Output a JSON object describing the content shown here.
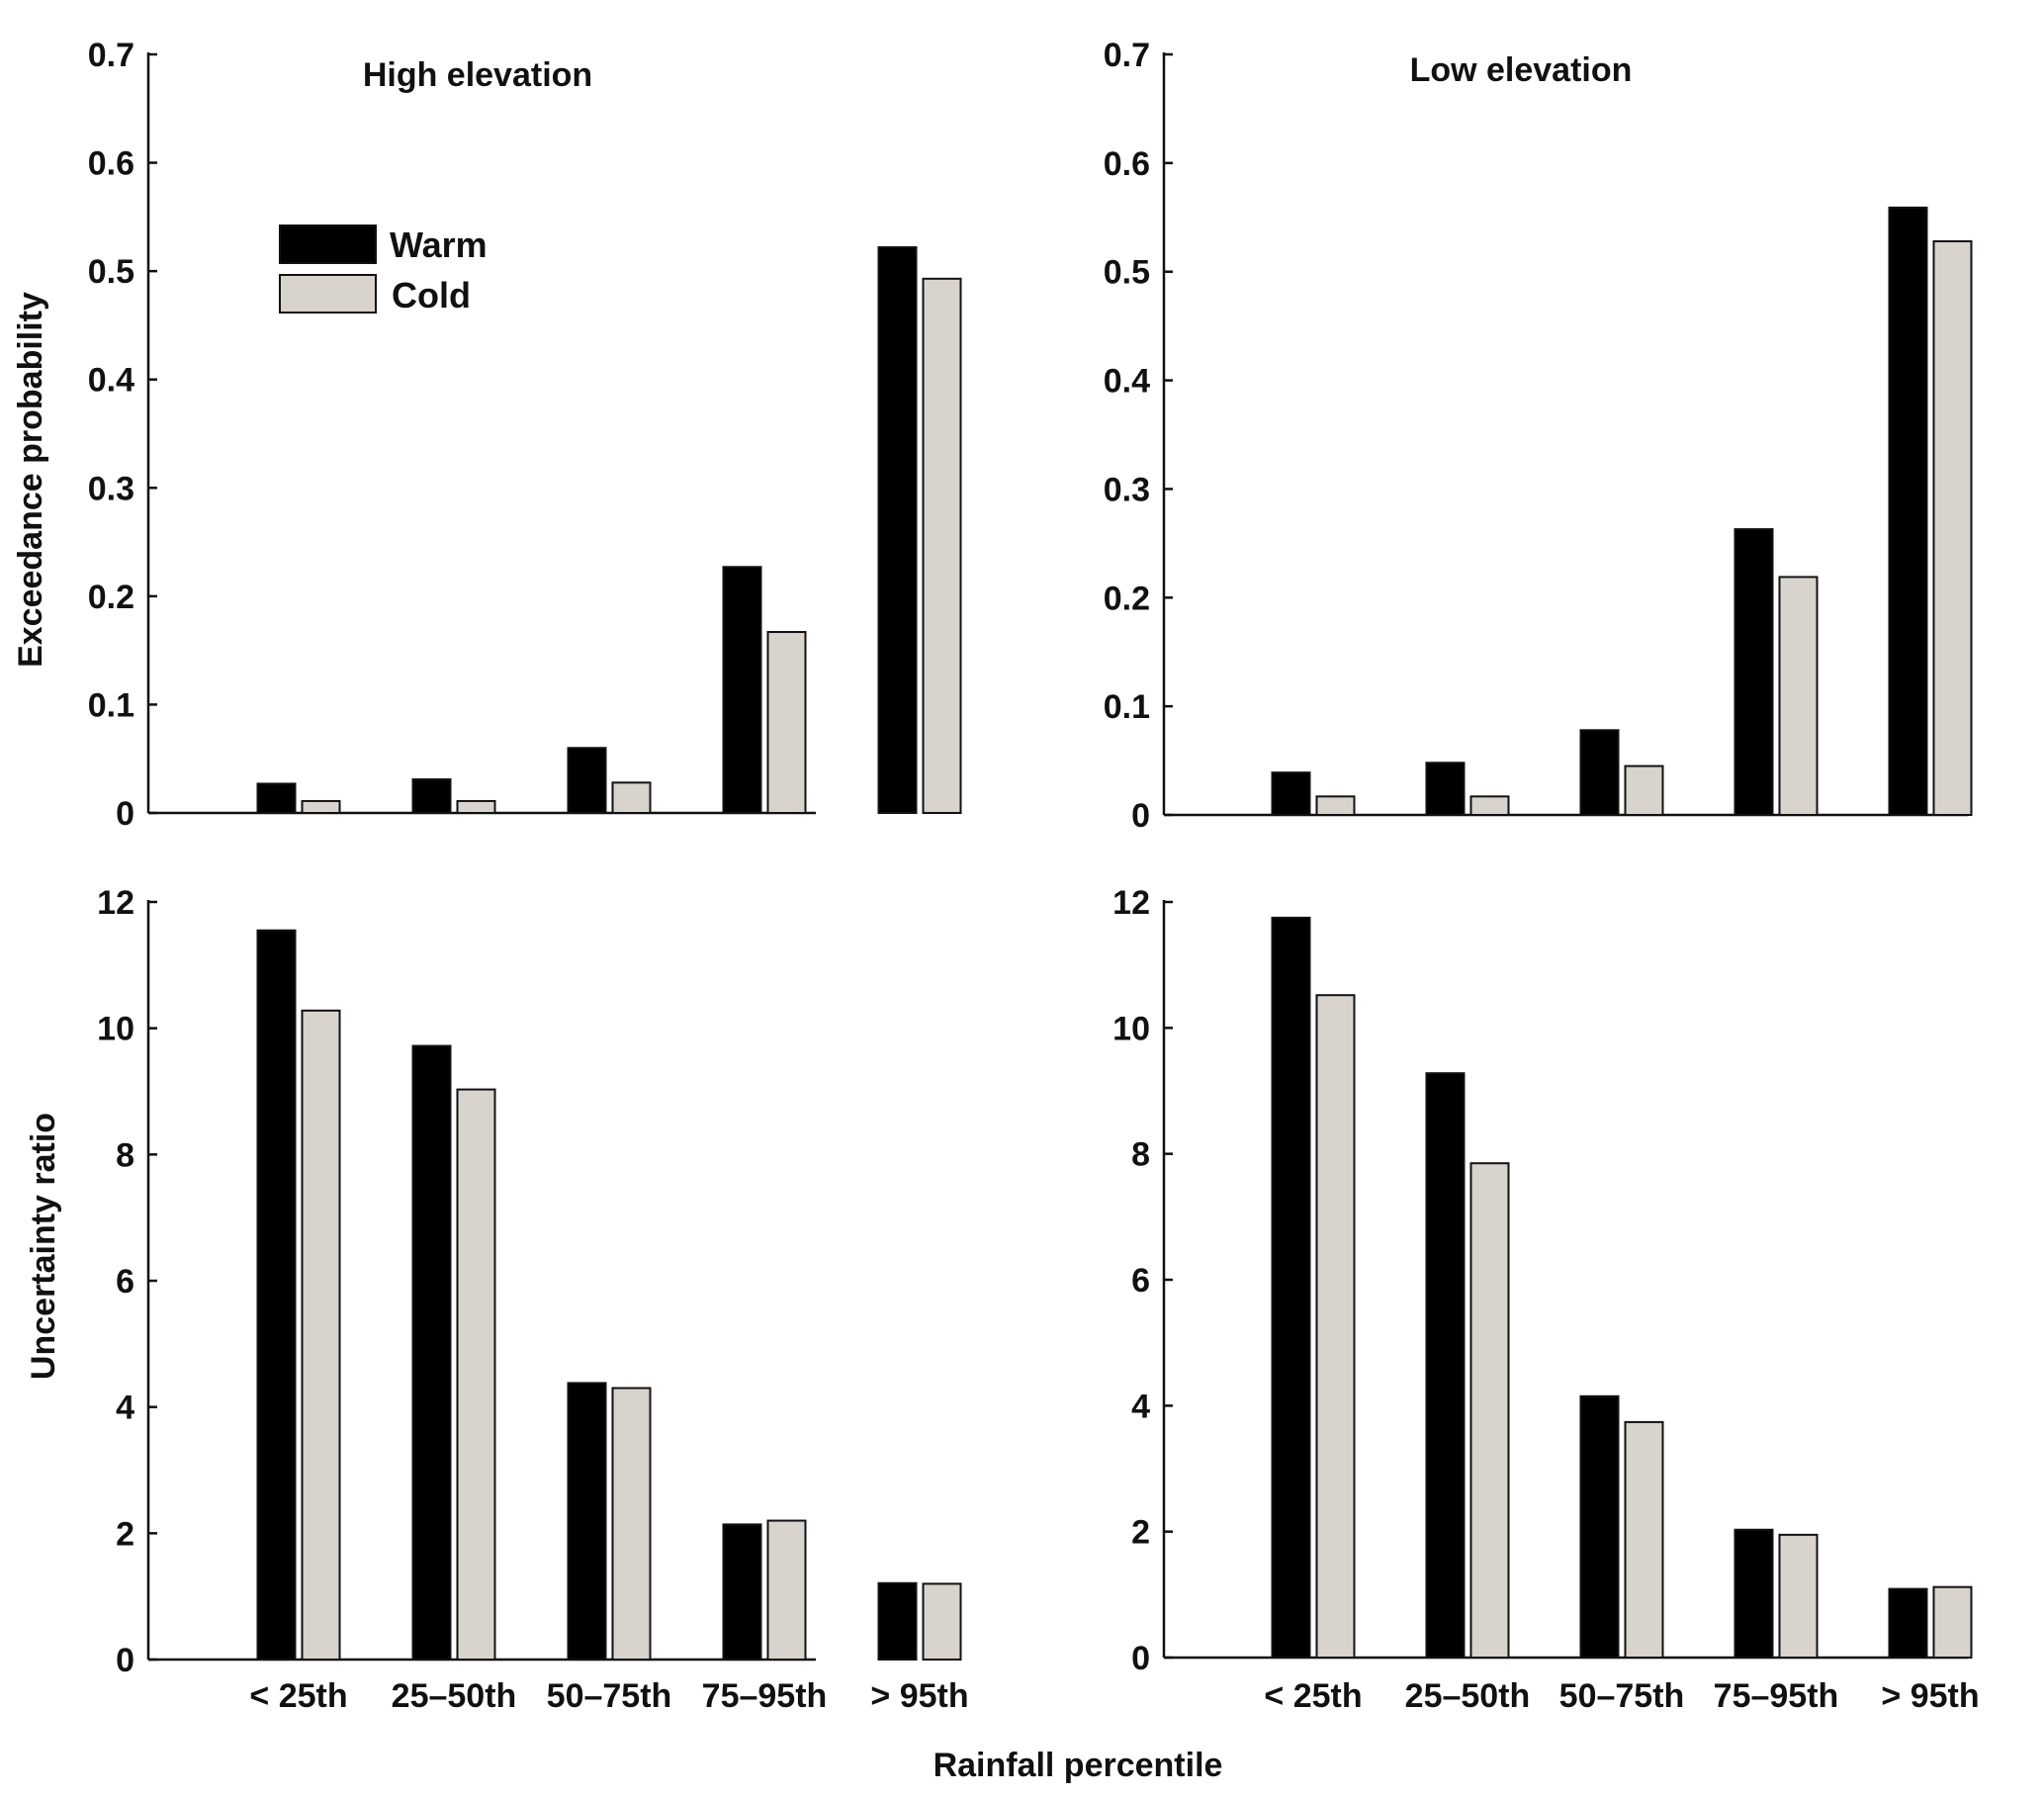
{
  "figure": {
    "shared_xlabel": "Rainfall percentile",
    "legend": [
      {
        "label": "Warm",
        "color": "#000000"
      },
      {
        "label": "Cold",
        "color": "#d8d3cc"
      }
    ]
  },
  "chart_data": [
    {
      "type": "bar",
      "title": "High elevation",
      "xlabel": "Rainfall percentile",
      "ylabel": "Exceedance probability",
      "ylim": [
        0,
        0.7
      ],
      "yticks": [
        "0",
        "0.1",
        "0.2",
        "0.3",
        "0.4",
        "0.5",
        "0.6",
        "0.7"
      ],
      "categories": [
        "< 25th",
        "25–50th",
        "50–75th",
        "75–95th",
        "> 95th"
      ],
      "series": [
        {
          "name": "Warm",
          "values": [
            0.027,
            0.031,
            0.06,
            0.227,
            0.522
          ]
        },
        {
          "name": "Cold",
          "values": [
            0.011,
            0.011,
            0.028,
            0.167,
            0.493
          ]
        }
      ],
      "legend_position": "top-left",
      "grid": false
    },
    {
      "type": "bar",
      "title": "Low elevation",
      "xlabel": "Rainfall percentile",
      "ylabel": "",
      "ylim": [
        0,
        0.7
      ],
      "yticks": [
        "0",
        "0.1",
        "0.2",
        "0.3",
        "0.4",
        "0.5",
        "0.6",
        "0.7"
      ],
      "categories": [
        "< 25th",
        "25–50th",
        "50–75th",
        "75–95th",
        "> 95th"
      ],
      "series": [
        {
          "name": "Warm",
          "values": [
            0.039,
            0.048,
            0.078,
            0.263,
            0.559
          ]
        },
        {
          "name": "Cold",
          "values": [
            0.017,
            0.017,
            0.045,
            0.219,
            0.528
          ]
        }
      ],
      "grid": false
    },
    {
      "type": "bar",
      "title": "",
      "xlabel": "Rainfall percentile",
      "ylabel": "Uncertainty ratio",
      "ylim": [
        0,
        12
      ],
      "yticks": [
        "0",
        "2",
        "4",
        "6",
        "8",
        "10",
        "12"
      ],
      "categories": [
        "< 25th",
        "25–50th",
        "50–75th",
        "75–95th",
        "> 95th"
      ],
      "series": [
        {
          "name": "Warm",
          "values": [
            11.55,
            9.72,
            4.38,
            2.14,
            1.21
          ]
        },
        {
          "name": "Cold",
          "values": [
            10.28,
            9.03,
            4.3,
            2.2,
            1.2
          ]
        }
      ],
      "grid": false
    },
    {
      "type": "bar",
      "title": "",
      "xlabel": "Rainfall percentile",
      "ylabel": "",
      "ylim": [
        0,
        12
      ],
      "yticks": [
        "0",
        "2",
        "4",
        "6",
        "8",
        "10",
        "12"
      ],
      "categories": [
        "< 25th",
        "25–50th",
        "50–75th",
        "75–95th",
        "> 95th"
      ],
      "series": [
        {
          "name": "Warm",
          "values": [
            11.75,
            9.28,
            4.15,
            2.03,
            1.09
          ]
        },
        {
          "name": "Cold",
          "values": [
            10.52,
            7.85,
            3.74,
            1.95,
            1.12
          ]
        }
      ],
      "grid": false
    }
  ]
}
